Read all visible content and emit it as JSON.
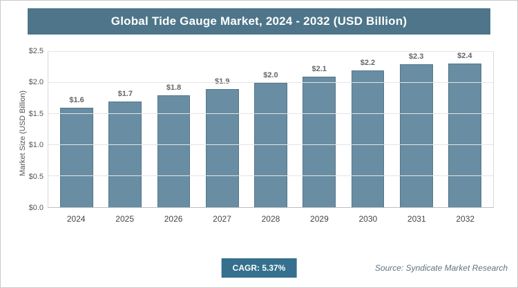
{
  "header": {
    "title": "Global Tide Gauge Market, 2024 - 2032 (USD Billion)"
  },
  "chart_data": {
    "type": "bar",
    "title": "Global Tide Gauge Market, 2024 - 2032 (USD Billion)",
    "categories": [
      "2024",
      "2025",
      "2026",
      "2027",
      "2028",
      "2029",
      "2030",
      "2031",
      "2032"
    ],
    "values": [
      1.6,
      1.7,
      1.8,
      1.9,
      2.0,
      2.1,
      2.2,
      2.3,
      2.4
    ],
    "value_labels": [
      "$1.6",
      "$1.7",
      "$1.8",
      "$1.9",
      "$2.0",
      "$2.1",
      "$2.2",
      "$2.3",
      "$2.4"
    ],
    "xlabel": "",
    "ylabel": "Market Size (USD Billion)",
    "ylim": [
      0,
      2.5
    ],
    "ytick_values": [
      0,
      0.5,
      1.0,
      1.5,
      2.0,
      2.5
    ],
    "ytick_labels": [
      "$0.0",
      "$0.5",
      "$1.0",
      "$1.5",
      "$2.0",
      "$2.5"
    ],
    "grid": "horizontal",
    "legend": "none",
    "bar_color": "#698ea3",
    "bar_border_color": "#54758a"
  },
  "footer": {
    "cagr_label": "CAGR: 5.37%",
    "source": "Source: Syndicate Market Research"
  },
  "colors": {
    "header_bg": "#4e7589",
    "badge_bg": "#35708e"
  }
}
